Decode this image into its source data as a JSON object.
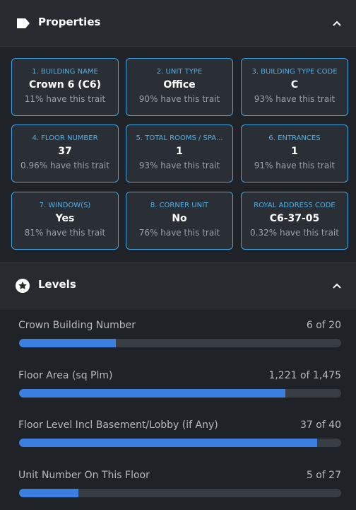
{
  "properties": {
    "title": "Properties",
    "traits": [
      {
        "type": "1. BUILDING NAME",
        "value": "Crown 6 (C6)",
        "rarity": "11% have this trait"
      },
      {
        "type": "2. UNIT TYPE",
        "value": "Office",
        "rarity": "90% have this trait"
      },
      {
        "type": "3. BUILDING TYPE CODE",
        "value": "C",
        "rarity": "93% have this trait"
      },
      {
        "type": "4. FLOOR NUMBER",
        "value": "37",
        "rarity": "0.96% have this trait"
      },
      {
        "type": "5. TOTAL ROOMS / SPA...",
        "value": "1",
        "rarity": "93% have this trait"
      },
      {
        "type": "6. ENTRANCES",
        "value": "1",
        "rarity": "91% have this trait"
      },
      {
        "type": "7. WINDOW(S)",
        "value": "Yes",
        "rarity": "81% have this trait"
      },
      {
        "type": "8. CORNER UNIT",
        "value": "No",
        "rarity": "76% have this trait"
      },
      {
        "type": "ROYAL ADDRESS CODE",
        "value": "C6-37-05",
        "rarity": "0.32% have this trait"
      }
    ]
  },
  "levels": {
    "title": "Levels",
    "items": [
      {
        "name": "Crown Building Number",
        "value": 6,
        "max": 20,
        "label": "6 of 20"
      },
      {
        "name": "Floor Area (sq Plm)",
        "value": 1221,
        "max": 1475,
        "label": "1,221 of 1,475"
      },
      {
        "name": "Floor Level Incl Basement/Lobby (if Any)",
        "value": 37,
        "max": 40,
        "label": "37 of 40"
      },
      {
        "name": "Unit Number On This Floor",
        "value": 5,
        "max": 27,
        "label": "5 of 27"
      }
    ]
  }
}
